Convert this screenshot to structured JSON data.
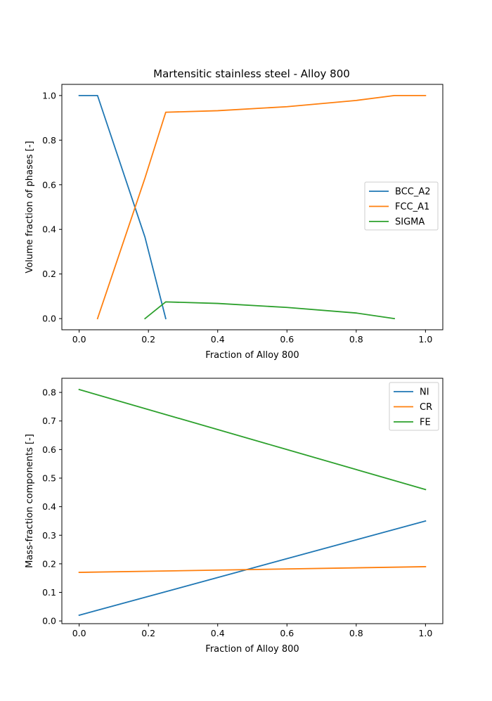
{
  "chart_data": [
    {
      "type": "line",
      "title": "Martensitic stainless steel - Alloy 800",
      "xlabel": "Fraction of Alloy 800",
      "ylabel": "Volume fraction of phases [-]",
      "xlim": [
        -0.05,
        1.05
      ],
      "ylim": [
        -0.05,
        1.05
      ],
      "xticks": [
        0.0,
        0.2,
        0.4,
        0.6,
        0.8,
        1.0
      ],
      "xtick_labels": [
        "0.0",
        "0.2",
        "0.4",
        "0.6",
        "0.8",
        "1.0"
      ],
      "yticks": [
        0.0,
        0.2,
        0.4,
        0.6,
        0.8,
        1.0
      ],
      "ytick_labels": [
        "0.0",
        "0.2",
        "0.4",
        "0.6",
        "0.8",
        "1.0"
      ],
      "grid": false,
      "legend": "center-right",
      "series": [
        {
          "name": "BCC_A2",
          "color": "#1f77b4",
          "x": [
            0.0,
            0.053,
            0.19,
            0.25
          ],
          "y": [
            1.0,
            1.0,
            0.365,
            0.0
          ]
        },
        {
          "name": "FCC_A1",
          "color": "#ff7f0e",
          "x": [
            0.053,
            0.19,
            0.25,
            0.4,
            0.6,
            0.8,
            0.91,
            1.0
          ],
          "y": [
            0.0,
            0.63,
            0.925,
            0.932,
            0.95,
            0.978,
            1.0,
            1.0
          ]
        },
        {
          "name": "SIGMA",
          "color": "#2ca02c",
          "x": [
            0.19,
            0.25,
            0.4,
            0.6,
            0.8,
            0.91
          ],
          "y": [
            0.0,
            0.075,
            0.068,
            0.05,
            0.025,
            0.0
          ]
        }
      ]
    },
    {
      "type": "line",
      "title": "",
      "xlabel": "Fraction of Alloy 800",
      "ylabel": "Mass-fraction components [-]",
      "xlim": [
        -0.05,
        1.05
      ],
      "ylim": [
        -0.0095,
        0.8495
      ],
      "xticks": [
        0.0,
        0.2,
        0.4,
        0.6,
        0.8,
        1.0
      ],
      "xtick_labels": [
        "0.0",
        "0.2",
        "0.4",
        "0.6",
        "0.8",
        "1.0"
      ],
      "yticks": [
        0.0,
        0.1,
        0.2,
        0.3,
        0.4,
        0.5,
        0.6,
        0.7,
        0.8
      ],
      "ytick_labels": [
        "0.0",
        "0.1",
        "0.2",
        "0.3",
        "0.4",
        "0.5",
        "0.6",
        "0.7",
        "0.8"
      ],
      "grid": false,
      "legend": "upper-right",
      "series": [
        {
          "name": "NI",
          "color": "#1f77b4",
          "x": [
            0.0,
            1.0
          ],
          "y": [
            0.02,
            0.35
          ]
        },
        {
          "name": "CR",
          "color": "#ff7f0e",
          "x": [
            0.0,
            1.0
          ],
          "y": [
            0.17,
            0.19
          ]
        },
        {
          "name": "FE",
          "color": "#2ca02c",
          "x": [
            0.0,
            1.0
          ],
          "y": [
            0.81,
            0.46
          ]
        }
      ]
    }
  ]
}
